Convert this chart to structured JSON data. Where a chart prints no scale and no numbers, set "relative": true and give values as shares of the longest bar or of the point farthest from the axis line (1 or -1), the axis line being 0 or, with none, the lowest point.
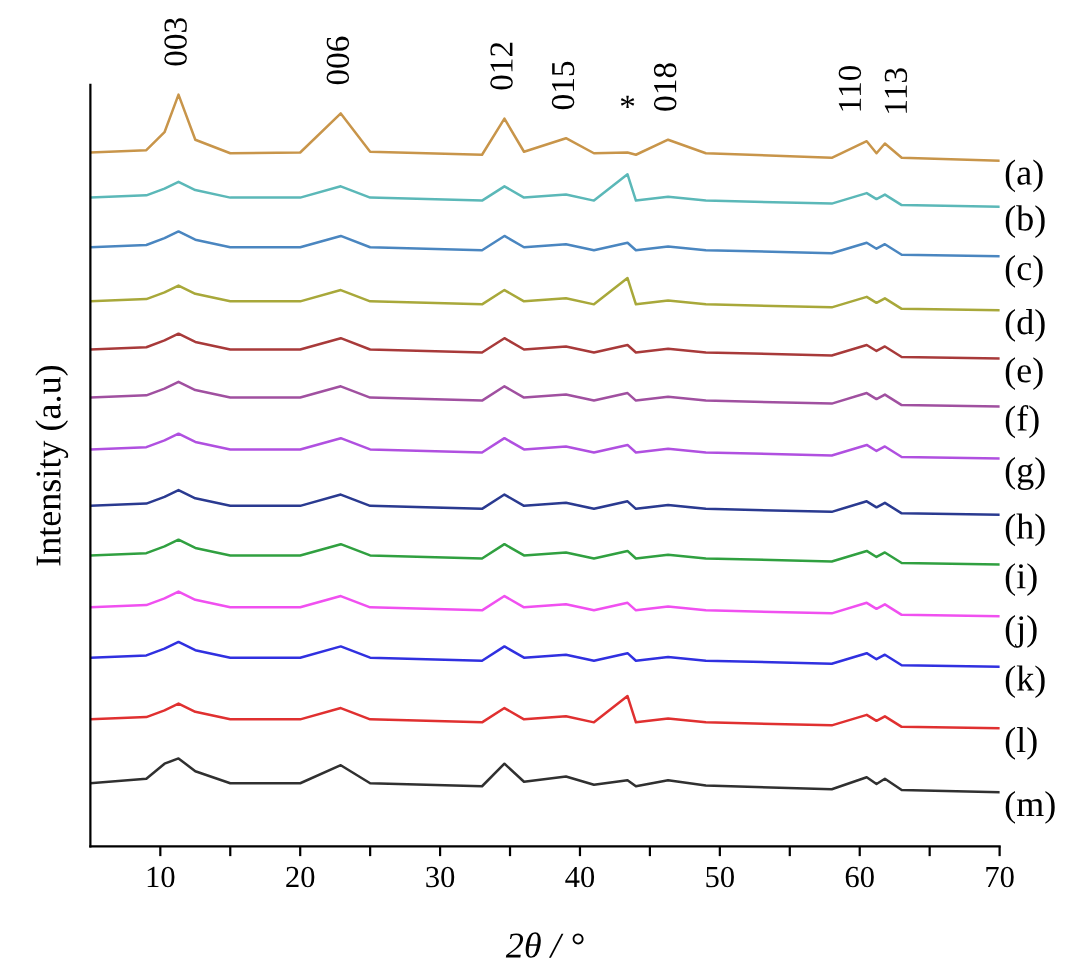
{
  "chart_data": {
    "type": "line",
    "relative": true,
    "xlabel": "2θ / °",
    "ylabel": "Intensity (a.u)",
    "xlim": [
      5,
      70
    ],
    "xticks": [
      10,
      {
        "value": 15,
        "label": null
      },
      20,
      {
        "value": 25,
        "label": null
      },
      30,
      {
        "value": 35,
        "label": null
      },
      40,
      {
        "value": 45,
        "label": null
      },
      50,
      {
        "value": 55,
        "label": null
      },
      60,
      {
        "value": 65,
        "label": null
      },
      70
    ],
    "tick_labels": "x",
    "grid": false,
    "legend": false,
    "marker": "none",
    "line_style": "solid",
    "x": [
      5,
      9,
      10.3,
      11.3,
      12.5,
      15,
      20,
      22.9,
      25,
      33,
      34.6,
      36,
      39,
      41,
      43.4,
      44,
      46.3,
      49,
      58,
      60.5,
      61.2,
      61.8,
      63,
      70
    ],
    "series": [
      {
        "name": "(a)",
        "color": "#c8954a",
        "values": [
          0.923,
          0.926,
          0.95,
          1.0,
          0.94,
          0.922,
          0.923,
          0.975,
          0.924,
          0.92,
          0.968,
          0.924,
          0.942,
          0.922,
          0.923,
          0.92,
          0.94,
          0.922,
          0.916,
          0.938,
          0.922,
          0.935,
          0.916,
          0.912
        ]
      },
      {
        "name": "(b)",
        "color": "#5bb8b8",
        "values": [
          0.863,
          0.866,
          0.875,
          0.884,
          0.873,
          0.863,
          0.863,
          0.878,
          0.863,
          0.859,
          0.878,
          0.863,
          0.867,
          0.859,
          0.894,
          0.859,
          0.864,
          0.859,
          0.855,
          0.869,
          0.861,
          0.867,
          0.853,
          0.851
        ]
      },
      {
        "name": "(c)",
        "color": "#4a86c0",
        "values": [
          0.797,
          0.8,
          0.809,
          0.818,
          0.807,
          0.797,
          0.797,
          0.812,
          0.797,
          0.793,
          0.812,
          0.797,
          0.801,
          0.793,
          0.803,
          0.793,
          0.798,
          0.793,
          0.789,
          0.803,
          0.795,
          0.801,
          0.787,
          0.785
        ]
      },
      {
        "name": "(d)",
        "color": "#a8a83a",
        "values": [
          0.725,
          0.728,
          0.737,
          0.746,
          0.735,
          0.725,
          0.725,
          0.74,
          0.725,
          0.721,
          0.74,
          0.725,
          0.729,
          0.721,
          0.756,
          0.721,
          0.726,
          0.721,
          0.717,
          0.731,
          0.723,
          0.729,
          0.715,
          0.713
        ]
      },
      {
        "name": "(e)",
        "color": "#a83a3a",
        "values": [
          0.661,
          0.664,
          0.673,
          0.682,
          0.671,
          0.661,
          0.661,
          0.676,
          0.661,
          0.657,
          0.676,
          0.661,
          0.665,
          0.657,
          0.667,
          0.657,
          0.662,
          0.657,
          0.653,
          0.667,
          0.659,
          0.665,
          0.651,
          0.649
        ]
      },
      {
        "name": "(f)",
        "color": "#a050a0",
        "values": [
          0.597,
          0.6,
          0.609,
          0.618,
          0.607,
          0.597,
          0.597,
          0.612,
          0.597,
          0.593,
          0.612,
          0.597,
          0.601,
          0.593,
          0.603,
          0.593,
          0.598,
          0.593,
          0.589,
          0.603,
          0.595,
          0.601,
          0.587,
          0.585
        ]
      },
      {
        "name": "(g)",
        "color": "#b050e0",
        "values": [
          0.528,
          0.531,
          0.54,
          0.549,
          0.538,
          0.528,
          0.528,
          0.543,
          0.528,
          0.524,
          0.543,
          0.528,
          0.532,
          0.524,
          0.534,
          0.524,
          0.529,
          0.524,
          0.52,
          0.534,
          0.526,
          0.532,
          0.518,
          0.516
        ]
      },
      {
        "name": "(h)",
        "color": "#2a3a90",
        "values": [
          0.453,
          0.456,
          0.465,
          0.474,
          0.463,
          0.453,
          0.453,
          0.468,
          0.453,
          0.449,
          0.468,
          0.453,
          0.457,
          0.449,
          0.459,
          0.449,
          0.454,
          0.449,
          0.445,
          0.459,
          0.451,
          0.457,
          0.443,
          0.441
        ]
      },
      {
        "name": "(i)",
        "color": "#30a040",
        "values": [
          0.387,
          0.39,
          0.399,
          0.408,
          0.397,
          0.387,
          0.387,
          0.402,
          0.387,
          0.383,
          0.402,
          0.387,
          0.391,
          0.383,
          0.393,
          0.383,
          0.388,
          0.383,
          0.379,
          0.393,
          0.385,
          0.391,
          0.377,
          0.375
        ]
      },
      {
        "name": "(j)",
        "color": "#f050f0",
        "values": [
          0.318,
          0.321,
          0.33,
          0.339,
          0.328,
          0.318,
          0.318,
          0.333,
          0.318,
          0.314,
          0.333,
          0.318,
          0.322,
          0.314,
          0.324,
          0.314,
          0.319,
          0.314,
          0.31,
          0.324,
          0.316,
          0.322,
          0.308,
          0.306
        ]
      },
      {
        "name": "(k)",
        "color": "#3030e0",
        "values": [
          0.251,
          0.254,
          0.263,
          0.272,
          0.261,
          0.251,
          0.251,
          0.266,
          0.251,
          0.247,
          0.266,
          0.251,
          0.255,
          0.247,
          0.257,
          0.247,
          0.252,
          0.247,
          0.243,
          0.257,
          0.249,
          0.255,
          0.241,
          0.239
        ]
      },
      {
        "name": "(l)",
        "color": "#e03030",
        "values": [
          0.169,
          0.172,
          0.181,
          0.19,
          0.179,
          0.169,
          0.169,
          0.184,
          0.169,
          0.165,
          0.184,
          0.169,
          0.173,
          0.165,
          0.2,
          0.165,
          0.17,
          0.165,
          0.161,
          0.175,
          0.167,
          0.173,
          0.159,
          0.157
        ]
      },
      {
        "name": "(m)",
        "color": "#303030",
        "values": [
          0.084,
          0.09,
          0.11,
          0.117,
          0.1,
          0.084,
          0.084,
          0.108,
          0.084,
          0.08,
          0.11,
          0.086,
          0.093,
          0.082,
          0.088,
          0.08,
          0.088,
          0.081,
          0.076,
          0.092,
          0.083,
          0.09,
          0.075,
          0.072
        ]
      }
    ],
    "annotations": [
      {
        "text": "003",
        "x": 11.3,
        "y": 1.0
      },
      {
        "text": "006",
        "x": 22.9,
        "y": 0.975
      },
      {
        "text": "012",
        "x": 34.6,
        "y": 0.968
      },
      {
        "text": "015",
        "x": 39,
        "y": 0.942
      },
      {
        "text": "*",
        "x": 43.4,
        "y": 0.923
      },
      {
        "text": "018",
        "x": 46.3,
        "y": 0.94
      },
      {
        "text": "110",
        "x": 60.5,
        "y": 0.938
      },
      {
        "text": "113",
        "x": 61.8,
        "y": 0.935
      }
    ]
  }
}
